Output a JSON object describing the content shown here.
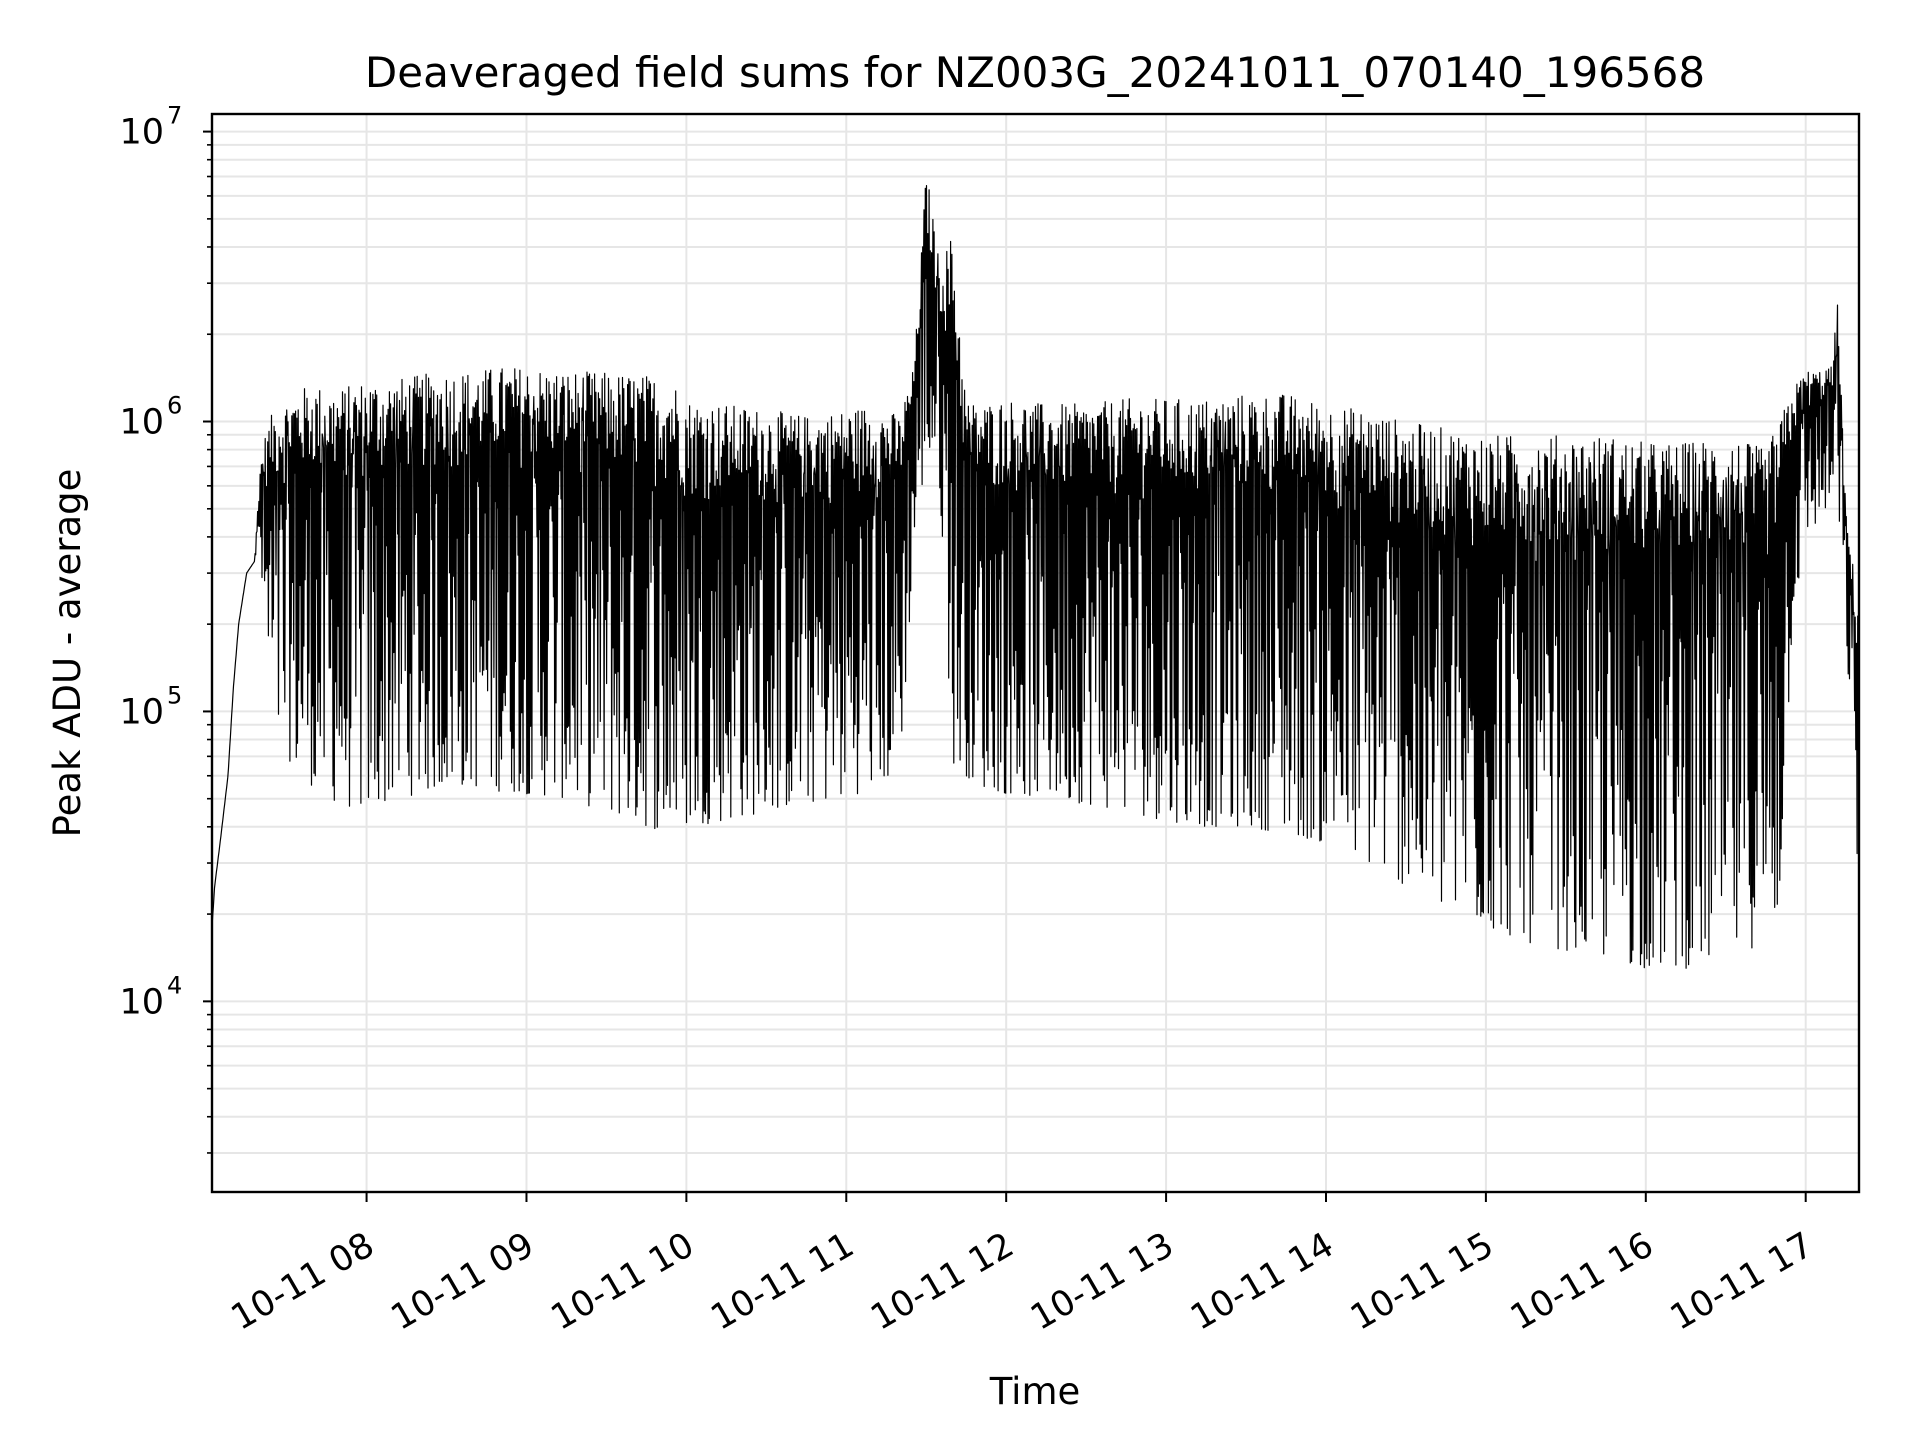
{
  "chart_data": {
    "type": "line",
    "title": "Deaveraged field sums for NZ003G_20241011_070140_196568",
    "xlabel": "Time",
    "ylabel": "Peak ADU - average",
    "y_scale": "log",
    "ylim": [
      2200,
      11500000
    ],
    "xlim": [
      "2024-10-11 07:02",
      "2024-10-11 17:20"
    ],
    "grid": true,
    "line_color": "#000000",
    "grid_color": "#e6e6e6",
    "y_ticks": [
      {
        "base": "10",
        "exp": "4",
        "value": 10000
      },
      {
        "base": "10",
        "exp": "5",
        "value": 100000
      },
      {
        "base": "10",
        "exp": "6",
        "value": 1000000
      },
      {
        "base": "10",
        "exp": "7",
        "value": 10000000
      }
    ],
    "x_ticks": [
      {
        "label": "10-11 08",
        "time": "2024-10-11 08:00"
      },
      {
        "label": "10-11 09",
        "time": "2024-10-11 09:00"
      },
      {
        "label": "10-11 10",
        "time": "2024-10-11 10:00"
      },
      {
        "label": "10-11 11",
        "time": "2024-10-11 11:00"
      },
      {
        "label": "10-11 12",
        "time": "2024-10-11 12:00"
      },
      {
        "label": "10-11 13",
        "time": "2024-10-11 13:00"
      },
      {
        "label": "10-11 14",
        "time": "2024-10-11 14:00"
      },
      {
        "label": "10-11 15",
        "time": "2024-10-11 15:00"
      },
      {
        "label": "10-11 16",
        "time": "2024-10-11 16:00"
      },
      {
        "label": "10-11 17",
        "time": "2024-10-11 17:00"
      }
    ],
    "series": [
      {
        "color": "#000000",
        "x": [
          "2024-10-11 07:02",
          "2024-10-11 07:03",
          "2024-10-11 07:05",
          "2024-10-11 07:08",
          "2024-10-11 07:10",
          "2024-10-11 07:12",
          "2024-10-11 07:15",
          "2024-10-11 07:18",
          "2024-10-11 07:20",
          "2024-10-11 07:22",
          "2024-10-11 07:25",
          "2024-10-11 07:30",
          "2024-10-11 07:35",
          "2024-10-11 07:40",
          "2024-10-11 07:45",
          "2024-10-11 07:50",
          "2024-10-11 07:55",
          "2024-10-11 08:00",
          "2024-10-11 08:10",
          "2024-10-11 08:20",
          "2024-10-11 08:30",
          "2024-10-11 08:40",
          "2024-10-11 08:50",
          "2024-10-11 09:00",
          "2024-10-11 09:15",
          "2024-10-11 09:30",
          "2024-10-11 09:45",
          "2024-10-11 09:55",
          "2024-10-11 10:00",
          "2024-10-11 10:15",
          "2024-10-11 10:30",
          "2024-10-11 10:45",
          "2024-10-11 11:00",
          "2024-10-11 11:10",
          "2024-10-11 11:20",
          "2024-10-11 11:25",
          "2024-10-11 11:27",
          "2024-10-11 11:30",
          "2024-10-11 11:35",
          "2024-10-11 11:40",
          "2024-10-11 11:45",
          "2024-10-11 11:50",
          "2024-10-11 12:00",
          "2024-10-11 12:15",
          "2024-10-11 12:30",
          "2024-10-11 12:45",
          "2024-10-11 13:00",
          "2024-10-11 13:15",
          "2024-10-11 13:30",
          "2024-10-11 13:45",
          "2024-10-11 14:00",
          "2024-10-11 14:15",
          "2024-10-11 14:30",
          "2024-10-11 14:45",
          "2024-10-11 15:00",
          "2024-10-11 15:15",
          "2024-10-11 15:30",
          "2024-10-11 15:45",
          "2024-10-11 16:00",
          "2024-10-11 16:15",
          "2024-10-11 16:30",
          "2024-10-11 16:45",
          "2024-10-11 16:50",
          "2024-10-11 16:55",
          "2024-10-11 17:00",
          "2024-10-11 17:05",
          "2024-10-11 17:08",
          "2024-10-11 17:10",
          "2024-10-11 17:12",
          "2024-10-11 17:15",
          "2024-10-11 17:20"
        ],
        "y_high": [
          18000,
          25000,
          35000,
          60000,
          120000,
          200000,
          300000,
          330000,
          700000,
          900000,
          1100000,
          1200000,
          1300000,
          1350000,
          1300000,
          1300000,
          1350000,
          1400000,
          1400000,
          1450000,
          1500000,
          1500000,
          1550000,
          1550000,
          1500000,
          1480000,
          1450000,
          1400000,
          1200000,
          1150000,
          1100000,
          1050000,
          1100000,
          1150000,
          1050000,
          1500000,
          2500000,
          7500000,
          3500000,
          4500000,
          1200000,
          1150000,
          1200000,
          1150000,
          1150000,
          1200000,
          1200000,
          1200000,
          1250000,
          1250000,
          1150000,
          1100000,
          1000000,
          950000,
          900000,
          900000,
          900000,
          900000,
          850000,
          850000,
          900000,
          800000,
          1000000,
          1300000,
          1500000,
          1500000,
          1550000,
          1550000,
          2700000,
          500000,
          220000
        ],
        "y_low": [
          18000,
          25000,
          35000,
          60000,
          120000,
          200000,
          300000,
          330000,
          350000,
          150000,
          80000,
          70000,
          60000,
          55000,
          50000,
          48000,
          46000,
          45000,
          50000,
          52000,
          55000,
          55000,
          53000,
          52000,
          50000,
          45000,
          40000,
          38000,
          40000,
          42000,
          45000,
          48000,
          50000,
          55000,
          60000,
          300000,
          500000,
          700000,
          600000,
          65000,
          60000,
          55000,
          52000,
          50000,
          48000,
          45000,
          42000,
          40000,
          40000,
          38000,
          35000,
          30000,
          25000,
          20000,
          18000,
          16000,
          15000,
          14000,
          13000,
          13000,
          14000,
          16000,
          20000,
          200000,
          400000,
          450000,
          500000,
          500000,
          500000,
          200000,
          22000
        ]
      }
    ]
  }
}
